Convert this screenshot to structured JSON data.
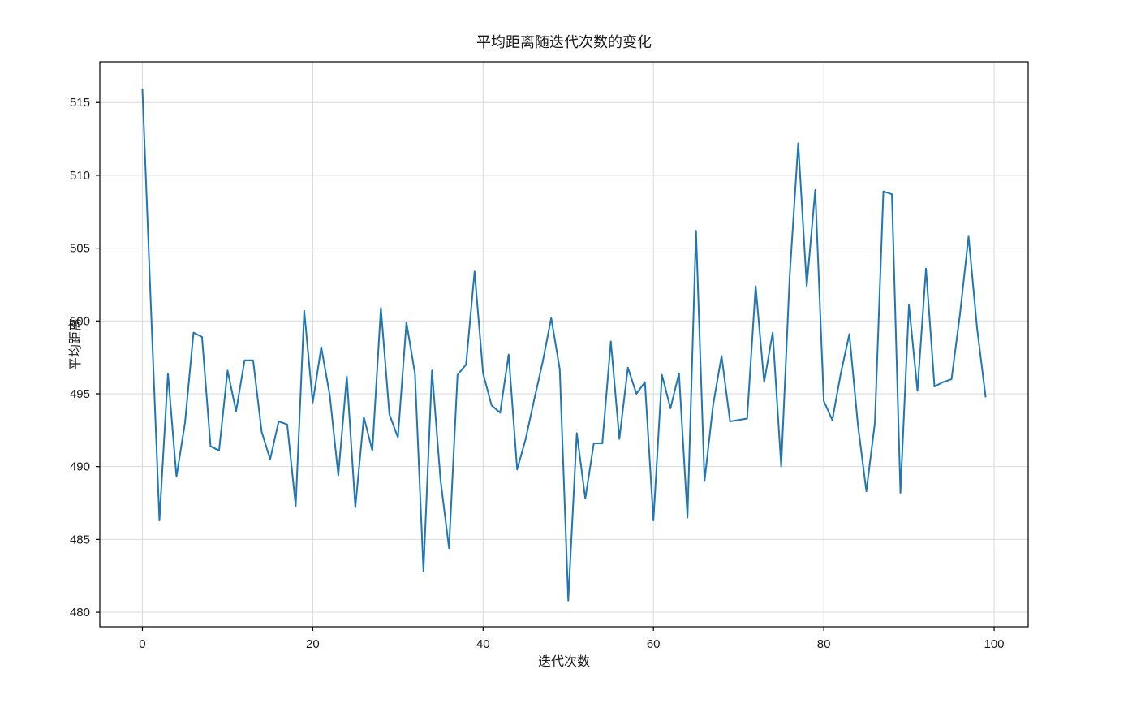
{
  "chart_data": {
    "type": "line",
    "title": "平均距离随迭代次数的变化",
    "xlabel": "迭代次数",
    "ylabel": "平均距离",
    "line_color": "#1f77b4",
    "grid": true,
    "legend": "none",
    "xlim": [
      -5,
      104
    ],
    "ylim": [
      479,
      517.8
    ],
    "xticks": [
      0,
      20,
      40,
      60,
      80,
      100
    ],
    "yticks": [
      480,
      485,
      490,
      495,
      500,
      505,
      510,
      515
    ],
    "x_is_index": true,
    "values": [
      515.9,
      501.0,
      486.3,
      496.4,
      489.3,
      493.0,
      499.2,
      498.9,
      491.4,
      491.1,
      496.6,
      493.8,
      497.3,
      497.3,
      492.4,
      490.5,
      493.1,
      492.9,
      487.3,
      500.7,
      494.4,
      498.2,
      494.9,
      489.4,
      496.2,
      487.2,
      493.4,
      491.1,
      500.9,
      493.6,
      492.0,
      499.9,
      496.4,
      482.8,
      496.6,
      489.1,
      484.4,
      496.3,
      497.0,
      503.4,
      496.4,
      494.2,
      493.7,
      497.7,
      489.8,
      491.9,
      494.6,
      497.2,
      500.2,
      496.7,
      480.8,
      492.3,
      487.8,
      491.6,
      491.6,
      498.6,
      491.9,
      496.8,
      495.0,
      495.8,
      486.3,
      496.3,
      494.0,
      496.4,
      486.5,
      506.2,
      489.0,
      494.2,
      497.6,
      493.1,
      493.2,
      493.3,
      502.4,
      495.8,
      499.2,
      490.0,
      503.1,
      512.2,
      502.4,
      509.0,
      494.5,
      493.2,
      496.4,
      499.1,
      492.9,
      488.3,
      493.0,
      508.9,
      508.7,
      488.2,
      501.1,
      495.2,
      503.6,
      495.5,
      495.8,
      496.0,
      500.5,
      505.8,
      499.5,
      494.8
    ]
  }
}
